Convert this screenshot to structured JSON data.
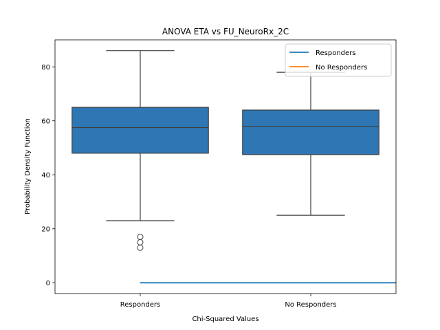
{
  "chart_data": {
    "type": "box",
    "title": "ANOVA ETA vs FU_NeuroRx_2C",
    "xlabel": "Chi-Squared Values",
    "ylabel": "Probability Density Function",
    "ylim": [
      -4,
      90
    ],
    "yticks": [
      0,
      20,
      40,
      60,
      80
    ],
    "categories": [
      "Responders",
      "No Responders"
    ],
    "boxes": [
      {
        "category": "Responders",
        "whisker_low": 23,
        "q1": 48,
        "median": 57.5,
        "q3": 65,
        "whisker_high": 86,
        "outliers": [
          17,
          15,
          13
        ]
      },
      {
        "category": "No Responders",
        "whisker_low": 25,
        "q1": 47.5,
        "median": 58,
        "q3": 64,
        "whisker_high": 78,
        "outliers": []
      }
    ],
    "box_color": "#2f77b4",
    "lines": [
      {
        "name": "Responders",
        "color": "#1f77b4",
        "x": [
          0,
          1.5
        ],
        "y": [
          0,
          0
        ]
      },
      {
        "name": "No Responders",
        "color": "#ff7f0e",
        "x": [],
        "y": []
      }
    ],
    "legend": {
      "position": "top-right",
      "entries": [
        "Responders",
        "No Responders"
      ]
    },
    "grid": false
  }
}
